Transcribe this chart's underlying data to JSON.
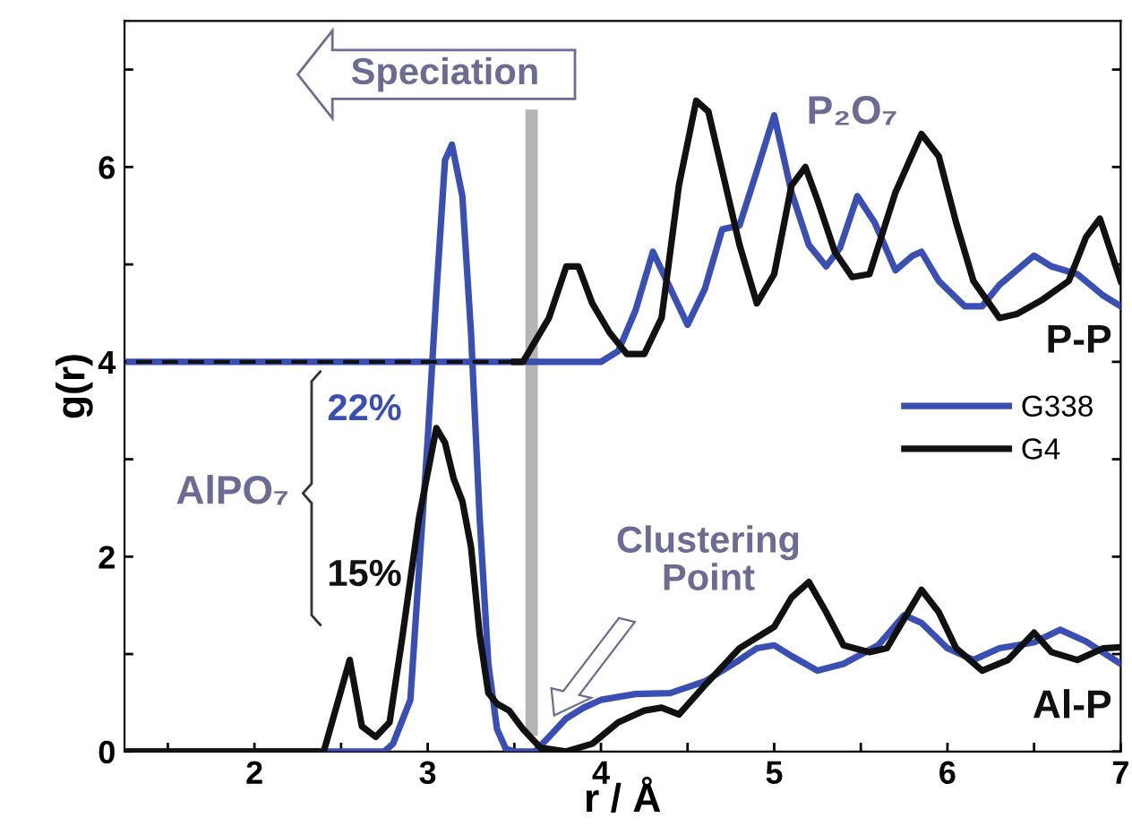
{
  "chart_data": {
    "type": "line",
    "xlabel": "r / Å",
    "ylabel": "g(r)",
    "xlim": [
      1.25,
      7
    ],
    "ylim": [
      0,
      7.5
    ],
    "xticks": [
      {
        "value": 1.5,
        "label": null
      },
      2,
      {
        "value": 2.5,
        "label": null
      },
      3,
      {
        "value": 3.5,
        "label": null
      },
      4,
      {
        "value": 4.5,
        "label": null
      },
      5,
      {
        "value": 5.5,
        "label": null
      },
      6,
      {
        "value": 6.5,
        "label": null
      },
      7
    ],
    "yticks": [
      0,
      {
        "value": 1,
        "label": null
      },
      2,
      {
        "value": 3,
        "label": null
      },
      4,
      {
        "value": 5,
        "label": null
      },
      6,
      {
        "value": 7,
        "label": null
      }
    ],
    "grid": false,
    "legend": "right",
    "line_style": "solid",
    "marker": "none",
    "series": [
      {
        "name": "G338",
        "color": "#3a4fb3",
        "x": [
          1.25,
          2.75,
          2.8,
          2.9,
          3.0,
          3.05,
          3.1,
          3.14,
          3.2,
          3.25,
          3.3,
          3.35,
          3.4,
          3.45,
          3.5,
          3.62,
          3.7,
          3.8,
          3.9,
          4.0,
          4.2,
          4.4,
          4.6,
          4.8,
          4.9,
          5.0,
          5.1,
          5.25,
          5.4,
          5.6,
          5.75,
          5.85,
          6.0,
          6.15,
          6.3,
          6.5,
          6.65,
          6.8,
          7.0
        ],
        "values": [
          0,
          0,
          0.08,
          0.53,
          3.2,
          4.7,
          6.07,
          6.23,
          5.7,
          4.3,
          2.4,
          0.9,
          0.23,
          0.03,
          0,
          0,
          0.15,
          0.34,
          0.45,
          0.53,
          0.59,
          0.6,
          0.72,
          0.94,
          1.06,
          1.09,
          0.98,
          0.83,
          0.9,
          1.09,
          1.4,
          1.32,
          1.06,
          0.94,
          1.06,
          1.12,
          1.25,
          1.13,
          0.9
        ]
      },
      {
        "name": "G4",
        "color": "#111111",
        "x": [
          1.25,
          2.4,
          2.55,
          2.62,
          2.7,
          2.78,
          2.85,
          2.95,
          3.05,
          3.1,
          3.15,
          3.2,
          3.25,
          3.3,
          3.35,
          3.4,
          3.47,
          3.55,
          3.65,
          3.8,
          3.95,
          4.1,
          4.25,
          4.35,
          4.45,
          4.6,
          4.8,
          5.0,
          5.1,
          5.2,
          5.3,
          5.4,
          5.55,
          5.65,
          5.75,
          5.85,
          5.95,
          6.05,
          6.2,
          6.35,
          6.5,
          6.6,
          6.75,
          6.9,
          7.0
        ],
        "values": [
          0,
          0,
          0.94,
          0.26,
          0.15,
          0.3,
          1.13,
          2.4,
          3.32,
          3.17,
          2.8,
          2.57,
          2.1,
          1.2,
          0.6,
          0.49,
          0.42,
          0.23,
          0.04,
          0,
          0.08,
          0.3,
          0.42,
          0.45,
          0.38,
          0.68,
          1.06,
          1.28,
          1.58,
          1.74,
          1.43,
          1.09,
          1.02,
          1.06,
          1.36,
          1.66,
          1.43,
          1.06,
          0.83,
          0.94,
          1.22,
          1.02,
          0.94,
          1.06,
          1.07
        ]
      },
      {
        "color": "#3a4fb3",
        "x": [
          1.25,
          3.5,
          4.0,
          4.1,
          4.2,
          4.3,
          4.38,
          4.5,
          4.6,
          4.7,
          4.8,
          4.9,
          5.0,
          5.1,
          5.2,
          5.3,
          5.38,
          5.48,
          5.58,
          5.7,
          5.8,
          5.85,
          5.95,
          6.1,
          6.2,
          6.3,
          6.5,
          6.6,
          6.75,
          6.9,
          7.0
        ],
        "values": [
          4,
          4,
          4,
          4.11,
          4.53,
          5.13,
          4.83,
          4.38,
          4.75,
          5.36,
          5.4,
          5.96,
          6.53,
          5.74,
          5.2,
          4.98,
          5.17,
          5.7,
          5.43,
          4.94,
          5.09,
          5.13,
          4.83,
          4.57,
          4.57,
          4.79,
          5.09,
          4.98,
          4.9,
          4.68,
          4.57
        ]
      },
      {
        "color": "#111111",
        "x": [
          3.5,
          3.55,
          3.6,
          3.7,
          3.8,
          3.87,
          3.95,
          4.05,
          4.15,
          4.25,
          4.35,
          4.45,
          4.55,
          4.62,
          4.7,
          4.8,
          4.9,
          5.0,
          5.1,
          5.18,
          5.25,
          5.35,
          5.45,
          5.55,
          5.7,
          5.85,
          5.95,
          6.05,
          6.15,
          6.3,
          6.4,
          6.55,
          6.7,
          6.8,
          6.88,
          7.0
        ],
        "values": [
          4,
          4,
          4.15,
          4.45,
          4.98,
          4.98,
          4.6,
          4.3,
          4.08,
          4.08,
          4.45,
          5.81,
          6.68,
          6.57,
          5.96,
          5.2,
          4.6,
          4.9,
          5.81,
          6.0,
          5.66,
          5.13,
          4.87,
          4.9,
          5.74,
          6.34,
          6.11,
          5.43,
          4.83,
          4.45,
          4.49,
          4.64,
          4.83,
          5.28,
          5.47,
          4.83
        ]
      },
      {
        "color": "#111111",
        "line_style": "dashed",
        "x": [
          3.5,
          1.25
        ],
        "values": [
          4,
          4
        ]
      }
    ],
    "ref_lines": [
      {
        "axis": "x",
        "value": 3.6,
        "color": "#b5b5b5"
      }
    ],
    "annotations": [
      "Speciation",
      "P₂O₇",
      "P-P",
      "Al-P",
      "AlPO₇",
      "22%",
      "15%",
      "Clustering\nPoint"
    ]
  }
}
